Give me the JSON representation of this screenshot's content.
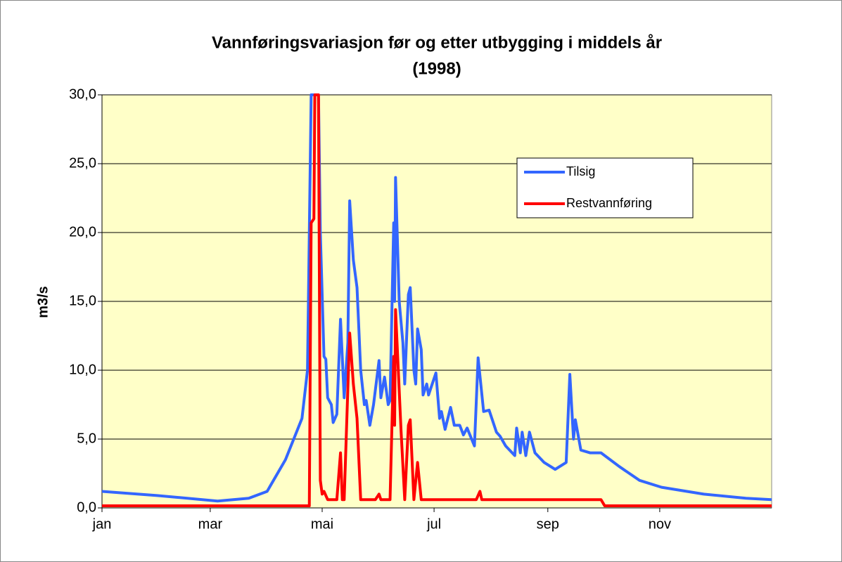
{
  "chart_data": {
    "type": "line",
    "title": [
      "Vannføringsvariasjon før og etter utbygging i middels år",
      "(1998)"
    ],
    "ylabel": "m3/s",
    "xlim": [
      0,
      365
    ],
    "xticks": [
      {
        "value": 0,
        "label": "jan"
      },
      {
        "value": 59,
        "label": "mar"
      },
      {
        "value": 120,
        "label": "mai"
      },
      {
        "value": 181,
        "label": "jul"
      },
      {
        "value": 243,
        "label": "sep"
      },
      {
        "value": 304,
        "label": "nov"
      }
    ],
    "ylim": [
      0,
      30
    ],
    "yticks": [
      {
        "value": 0,
        "label": "0,0"
      },
      {
        "value": 5,
        "label": "5,0"
      },
      {
        "value": 10,
        "label": "10,0"
      },
      {
        "value": 15,
        "label": "15,0"
      },
      {
        "value": 20,
        "label": "20,0"
      },
      {
        "value": 25,
        "label": "25,0"
      },
      {
        "value": 30,
        "label": "30,0"
      }
    ],
    "grid": true,
    "legend": "upper right",
    "series": [
      {
        "name": "Tilsig",
        "color": "#3366ff",
        "x": [
          0,
          30,
          63,
          80,
          90,
          100,
          109,
          112,
          114,
          118,
          119,
          121,
          122,
          123,
          125,
          126,
          128,
          130,
          132,
          134,
          135,
          137,
          139,
          141,
          143,
          144,
          146,
          148,
          151,
          152,
          154,
          156,
          157,
          159,
          159.5,
          160,
          162,
          164,
          165,
          167,
          168,
          170,
          171,
          172,
          174,
          175,
          177,
          178,
          182,
          184,
          185,
          187,
          190,
          192,
          195,
          197,
          199,
          203,
          205,
          208,
          211,
          215,
          217,
          220,
          225,
          226,
          228,
          229,
          231,
          233,
          236,
          241,
          247,
          253,
          255,
          257,
          258,
          261,
          266,
          272,
          282,
          293,
          305,
          328,
          351,
          365
        ],
        "values": [
          1.2,
          0.9,
          0.5,
          0.7,
          1.2,
          3.5,
          6.5,
          10,
          30,
          30,
          20,
          11,
          10.8,
          8,
          7.5,
          6.2,
          6.8,
          13.7,
          8,
          12,
          22.3,
          18,
          16,
          10,
          7.5,
          7.8,
          6,
          7.5,
          10.7,
          8,
          9.5,
          7.5,
          7.8,
          20.7,
          15,
          24,
          15,
          12,
          9,
          15.5,
          16,
          10,
          9,
          13,
          11.5,
          8.2,
          9,
          8.2,
          9.8,
          6.5,
          7,
          5.7,
          7.3,
          6,
          6,
          5.3,
          5.8,
          4.5,
          10.9,
          7,
          7.1,
          5.5,
          5.2,
          4.5,
          3.8,
          5.8,
          4,
          5.5,
          3.8,
          5.5,
          4,
          3.3,
          2.8,
          3.3,
          9.7,
          5,
          6.4,
          4.2,
          4,
          4,
          3,
          2,
          1.5,
          1,
          0.7,
          0.6
        ]
      },
      {
        "name": "Restvannføring",
        "color": "#ff0000",
        "x": [
          0,
          113,
          114,
          115.5,
          116,
          118,
          119,
          120,
          121,
          123,
          128,
          130,
          131,
          132,
          135,
          137,
          139,
          141,
          149,
          151,
          152,
          157,
          159,
          159.5,
          160,
          163,
          165,
          167,
          168,
          170,
          172,
          174,
          204,
          206,
          207,
          272,
          274,
          365
        ],
        "values": [
          0.15,
          0.15,
          20.7,
          21,
          30,
          30,
          2,
          1,
          1.2,
          0.6,
          0.6,
          4,
          0.6,
          0.6,
          12.7,
          9,
          6.5,
          0.6,
          0.6,
          1,
          0.6,
          0.6,
          11,
          6,
          14.4,
          5.6,
          0.6,
          6,
          6.4,
          0.6,
          3.3,
          0.6,
          0.6,
          1.2,
          0.6,
          0.6,
          0.15,
          0.15
        ]
      }
    ]
  }
}
